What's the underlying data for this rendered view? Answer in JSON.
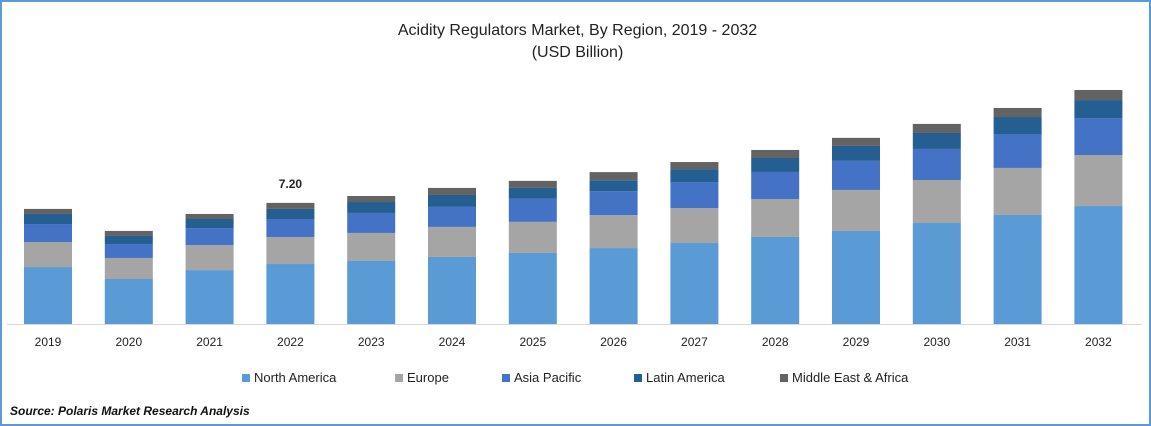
{
  "chart_data": {
    "type": "bar",
    "stacked": true,
    "title": "Acidity Regulators Market, By Region, 2019 - 2032",
    "subtitle": "(USD Billion)",
    "xlabel": "",
    "ylabel": "",
    "categories": [
      "2019",
      "2020",
      "2021",
      "2022",
      "2023",
      "2024",
      "2025",
      "2026",
      "2027",
      "2028",
      "2029",
      "2030",
      "2031",
      "2032"
    ],
    "series": [
      {
        "name": "North America",
        "color": "#5b9bd5",
        "values": [
          3.39,
          2.68,
          3.21,
          3.57,
          3.75,
          3.99,
          4.23,
          4.52,
          4.82,
          5.18,
          5.54,
          6.01,
          6.49,
          7.02
        ]
      },
      {
        "name": "Europe",
        "color": "#a5a5a5",
        "values": [
          1.49,
          1.25,
          1.49,
          1.61,
          1.67,
          1.79,
          1.85,
          1.96,
          2.08,
          2.26,
          2.44,
          2.56,
          2.8,
          3.04
        ]
      },
      {
        "name": "Asia Pacific",
        "color": "#4472c4",
        "values": [
          1.07,
          0.83,
          1.01,
          1.07,
          1.19,
          1.19,
          1.37,
          1.43,
          1.55,
          1.61,
          1.73,
          1.85,
          2.02,
          2.2
        ]
      },
      {
        "name": "Latin America",
        "color": "#255e91",
        "values": [
          0.6,
          0.48,
          0.54,
          0.6,
          0.65,
          0.71,
          0.65,
          0.65,
          0.77,
          0.83,
          0.89,
          0.95,
          1.01,
          1.07
        ]
      },
      {
        "name": "Middle East & Africa",
        "color": "#636363",
        "values": [
          0.3,
          0.3,
          0.3,
          0.36,
          0.36,
          0.42,
          0.42,
          0.48,
          0.42,
          0.48,
          0.48,
          0.54,
          0.54,
          0.6
        ]
      }
    ],
    "annotations": [
      {
        "category": "2022",
        "text": "7.20"
      }
    ],
    "ylim": [
      0,
      14
    ],
    "y_axis_visible": false,
    "grid": false,
    "legend_position": "bottom"
  },
  "source": "Source: Polaris  Market Research Analysis"
}
